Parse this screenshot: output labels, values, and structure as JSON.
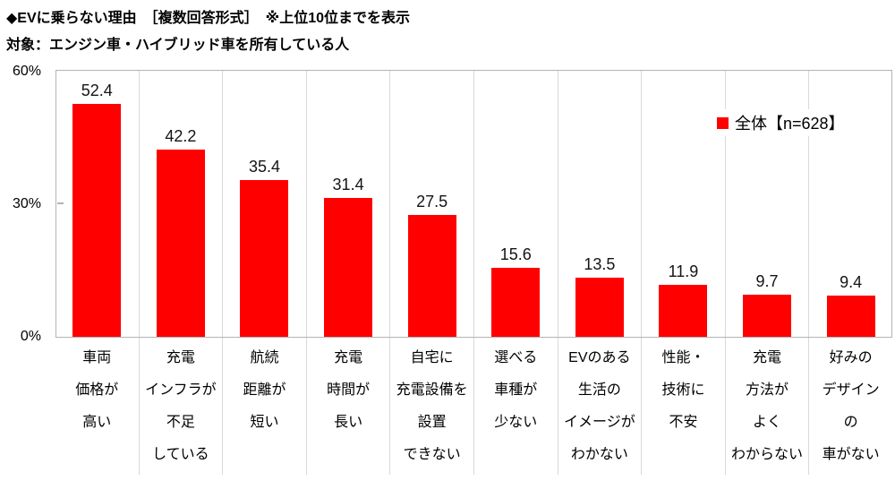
{
  "header": {
    "title": "◆EVに乗らない理由　［複数回答形式］　※上位10位までを表示",
    "subtitle": "対象：エンジン車・ハイブリッド車を所有している人"
  },
  "legend": {
    "label": "全体【n=628】",
    "swatch_color": "#ff0000"
  },
  "y_axis": {
    "ticks": [
      "60%",
      "30%",
      "0%"
    ],
    "min": 0,
    "max": 60
  },
  "chart_data": {
    "type": "bar",
    "title": "EVに乗らない理由［複数回答形式］上位10位",
    "categories": [
      "車両価格が高い",
      "充電インフラが不足している",
      "航続距離が短い",
      "充電時間が長い",
      "自宅に充電設備を設置できない",
      "選べる車種が少ない",
      "EVのある生活のイメージがわかない",
      "性能・技術に不安",
      "充電方法がよくわからない",
      "好みのデザインの車がない"
    ],
    "category_lines": [
      [
        "車両",
        "価格が",
        "高い"
      ],
      [
        "充電",
        "インフラが",
        "不足",
        "している"
      ],
      [
        "航続",
        "距離が",
        "短い"
      ],
      [
        "充電",
        "時間が",
        "長い"
      ],
      [
        "自宅に",
        "充電設備を",
        "設置",
        "できない"
      ],
      [
        "選べる",
        "車種が",
        "少ない"
      ],
      [
        "EVのある",
        "生活の",
        "イメージが",
        "わかない"
      ],
      [
        "性能・",
        "技術に",
        "不安"
      ],
      [
        "充電",
        "方法が",
        "よく",
        "わからない"
      ],
      [
        "好みの",
        "デザイン",
        "の",
        "車がない"
      ]
    ],
    "series": [
      {
        "name": "全体【n=628】",
        "values": [
          52.4,
          42.2,
          35.4,
          31.4,
          27.5,
          15.6,
          13.5,
          11.9,
          9.7,
          9.4
        ]
      }
    ],
    "values": [
      52.4,
      42.2,
      35.4,
      31.4,
      27.5,
      15.6,
      13.5,
      11.9,
      9.7,
      9.4
    ],
    "xlabel": "",
    "ylabel": "%",
    "ylim": [
      0,
      60
    ],
    "ytick_values": [
      0,
      30,
      60
    ],
    "grid": "vertical-category-separators",
    "legend_position": "top-right-inside",
    "bar_color": "#ff0000",
    "axis_color": "#b3b3b3",
    "separator_color": "#d9d9d9"
  }
}
